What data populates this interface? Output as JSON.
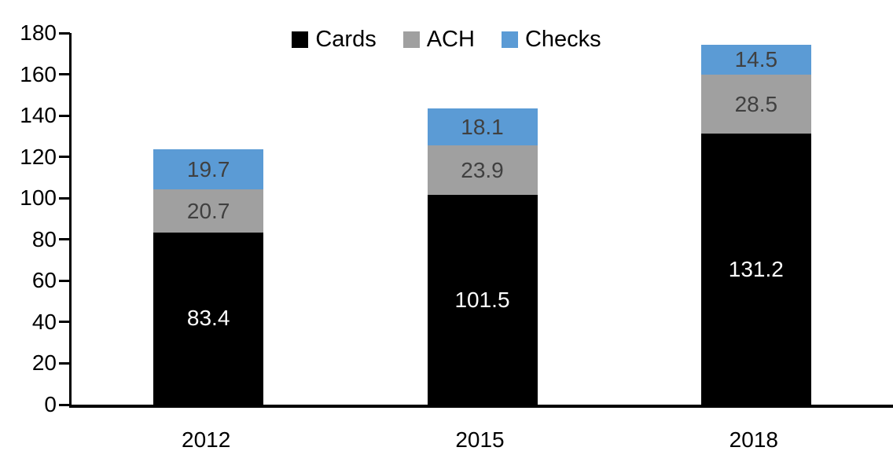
{
  "chart_data": {
    "type": "bar",
    "stacked": true,
    "title": "",
    "xlabel": "",
    "ylabel": "",
    "categories": [
      "2012",
      "2015",
      "2018"
    ],
    "series": [
      {
        "name": "Cards",
        "color": "#000000",
        "label_color": "#ffffff",
        "values": [
          83.4,
          101.5,
          131.2
        ]
      },
      {
        "name": "ACH",
        "color": "#a0a0a0",
        "label_color": "#404040",
        "values": [
          20.7,
          23.9,
          28.5
        ]
      },
      {
        "name": "Checks",
        "color": "#5b9bd5",
        "label_color": "#404040",
        "values": [
          19.7,
          18.1,
          14.5
        ]
      }
    ],
    "ylim": [
      0,
      180
    ],
    "yticks": [
      0,
      20,
      40,
      60,
      80,
      100,
      120,
      140,
      160,
      180
    ],
    "grid": false,
    "legend_position": "top-center",
    "legend_order": [
      "Cards",
      "ACH",
      "Checks"
    ]
  },
  "colors": {
    "axis": "#000000",
    "background": "#ffffff"
  }
}
